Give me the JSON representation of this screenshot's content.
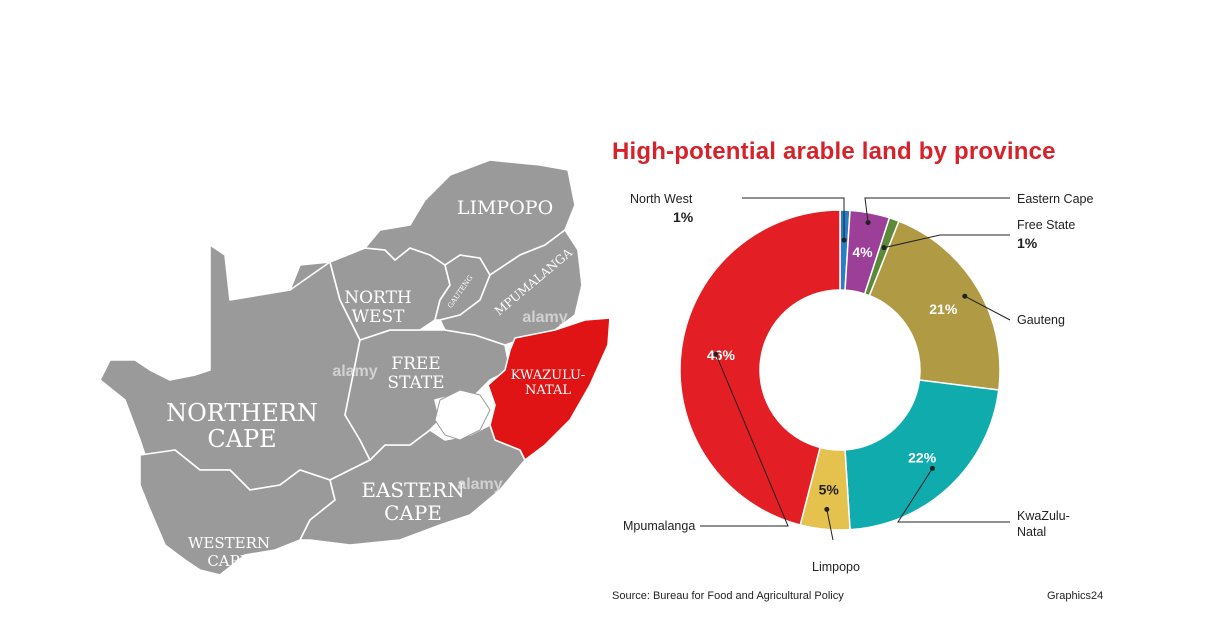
{
  "map": {
    "labels": {
      "limpopo": "LIMPOPO",
      "north_west_1": "NORTH",
      "north_west_2": "WEST",
      "gauteng": "GAUTENG",
      "mpumalanga": "MPUMALANGA",
      "free_state_1": "FREE",
      "free_state_2": "STATE",
      "kzn_1": "KWAZULU-",
      "kzn_2": "NATAL",
      "northern_cape_1": "NORTHERN",
      "northern_cape_2": "CAPE",
      "eastern_cape_1": "EASTERN",
      "eastern_cape_2": "CAPE",
      "western_cape_1": "WESTERN",
      "western_cape_2": "CAPE"
    },
    "watermark": "alamy",
    "colors": {
      "land": "#9a9a9a",
      "highlight": "#e01414",
      "border": "#ffffff"
    }
  },
  "chart_data": {
    "type": "pie",
    "title": "High-potential arable land by province",
    "donut": true,
    "slices": [
      {
        "label": "North West",
        "value": 1,
        "color": "#2a7fc4"
      },
      {
        "label": "Eastern Cape",
        "value": 4,
        "color": "#9b3f98"
      },
      {
        "label": "Free State",
        "value": 1,
        "color": "#5c8a3a"
      },
      {
        "label": "Gauteng",
        "value": 21,
        "color": "#b09a44"
      },
      {
        "label": "KwaZulu-Natal",
        "value": 22,
        "color": "#0fabad"
      },
      {
        "label": "Limpopo",
        "value": 5,
        "color": "#e5c14e"
      },
      {
        "label": "Mpumalanga",
        "value": 46,
        "color": "#e31e24"
      }
    ],
    "value_labels": [
      "1%",
      "4%",
      "1%",
      "21%",
      "22%",
      "5%",
      "46%"
    ],
    "source": "Source: Bureau for Food and Agricultural Policy",
    "credit": "Graphics24"
  },
  "labels": {
    "north_west": "North West",
    "north_west_pct": "1%",
    "eastern_cape": "Eastern Cape",
    "free_state": "Free State",
    "free_state_pct": "1%",
    "gauteng": "Gauteng",
    "kzn_1": "KwaZulu-",
    "kzn_2": "Natal",
    "limpopo": "Limpopo",
    "mpumalanga": "Mpumalanga"
  }
}
